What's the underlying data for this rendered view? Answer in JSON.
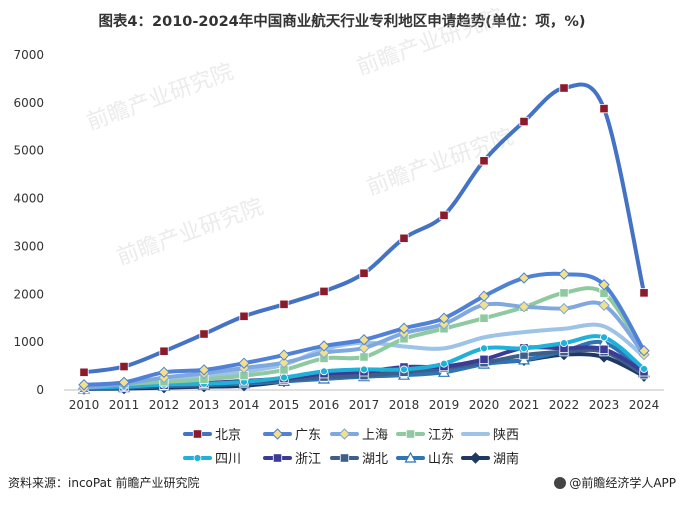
{
  "title": "图表4：2010-2024年中国商业航天行业专利地区申请趋势(单位：项，%)",
  "source": "资料来源：incoPat 前瞻产业研究院",
  "brand": "@前瞻经济学人APP",
  "watermark": "前瞻产业研究院",
  "chart_data": {
    "type": "line",
    "title": "图表4：2010-2024年中国商业航天行业专利地区申请趋势(单位：项，%)",
    "xlabel": "",
    "ylabel": "",
    "ylim": [
      0,
      7000
    ],
    "yticks": [
      0,
      1000,
      2000,
      3000,
      4000,
      5000,
      6000,
      7000
    ],
    "categories": [
      "2010",
      "2011",
      "2012",
      "2013",
      "2014",
      "2015",
      "2016",
      "2017",
      "2018",
      "2019",
      "2020",
      "2021",
      "2022",
      "2023",
      "2024"
    ],
    "legend_position": "bottom",
    "series": [
      {
        "name": "北京",
        "color": "#4472c4",
        "marker": "square",
        "values": [
          370,
          490,
          810,
          1170,
          1540,
          1790,
          2060,
          2440,
          3170,
          3650,
          4790,
          5610,
          6310,
          5880,
          2030
        ]
      },
      {
        "name": "广东",
        "color": "#4f81d6",
        "marker": "diamond",
        "values": [
          110,
          160,
          370,
          420,
          560,
          730,
          920,
          1050,
          1290,
          1500,
          1960,
          2340,
          2420,
          2200,
          820
        ]
      },
      {
        "name": "上海",
        "color": "#7fa7e0",
        "marker": "diamond",
        "values": [
          40,
          130,
          260,
          350,
          460,
          570,
          780,
          880,
          1190,
          1380,
          1780,
          1740,
          1700,
          1770,
          740
        ]
      },
      {
        "name": "江苏",
        "color": "#8fc9a0",
        "marker": "square",
        "values": [
          80,
          130,
          170,
          220,
          300,
          420,
          660,
          690,
          1070,
          1280,
          1500,
          1730,
          2030,
          2020,
          780
        ]
      },
      {
        "name": "陕西",
        "color": "#9dc3e6",
        "marker": "none",
        "values": [
          70,
          120,
          190,
          290,
          380,
          530,
          850,
          990,
          910,
          870,
          1100,
          1210,
          1280,
          1330,
          700
        ]
      },
      {
        "name": "四川",
        "color": "#1fb1d8",
        "marker": "circle",
        "values": [
          50,
          70,
          110,
          130,
          170,
          260,
          390,
          430,
          430,
          550,
          870,
          870,
          980,
          1100,
          440
        ]
      },
      {
        "name": "浙江",
        "color": "#3c3c96",
        "marker": "square",
        "values": [
          40,
          70,
          100,
          140,
          190,
          240,
          340,
          380,
          480,
          490,
          640,
          880,
          870,
          850,
          380
        ]
      },
      {
        "name": "湖北",
        "color": "#3e5f8a",
        "marker": "square",
        "values": [
          30,
          60,
          90,
          110,
          150,
          210,
          270,
          300,
          370,
          460,
          570,
          730,
          800,
          800,
          320
        ]
      },
      {
        "name": "山东",
        "color": "#2e75b6",
        "marker": "triangle",
        "values": [
          20,
          50,
          80,
          100,
          130,
          180,
          230,
          280,
          310,
          370,
          540,
          630,
          810,
          990,
          360
        ]
      },
      {
        "name": "湖南",
        "color": "#1f3864",
        "marker": "diamond",
        "values": [
          20,
          30,
          50,
          70,
          90,
          180,
          330,
          320,
          370,
          400,
          560,
          620,
          740,
          690,
          290
        ]
      }
    ]
  }
}
